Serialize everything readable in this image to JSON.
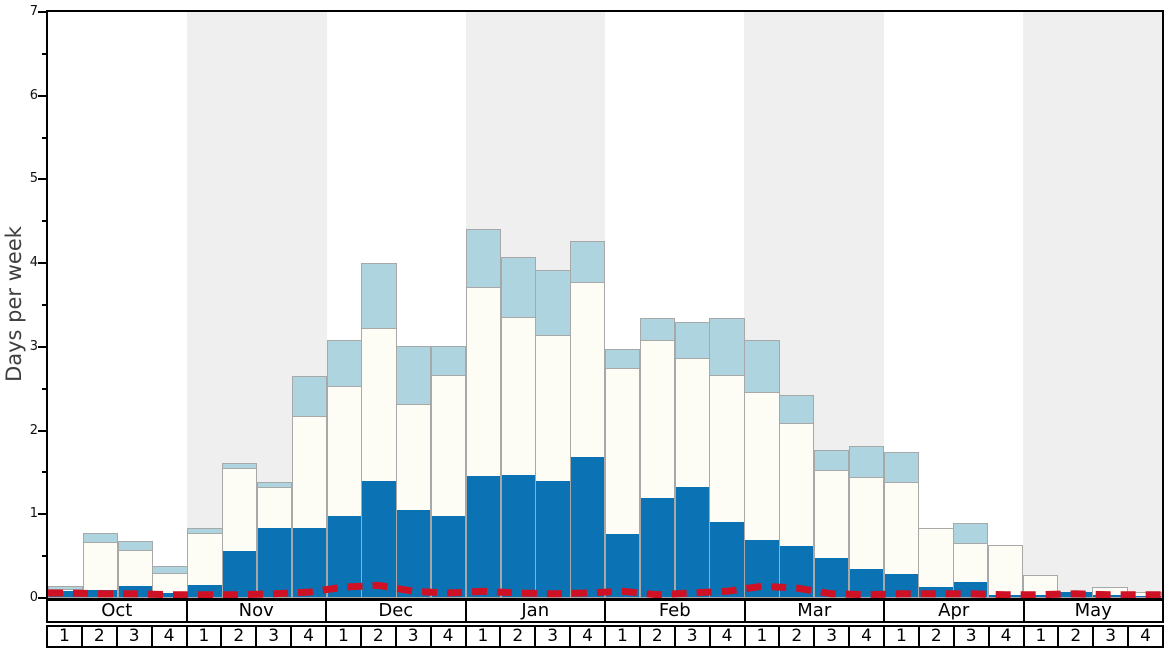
{
  "chart_data": {
    "type": "bar",
    "stacked": true,
    "title": "",
    "xlabel": "",
    "ylabel": "Days per week",
    "ylim": [
      0,
      7
    ],
    "yticks": [
      "0",
      "1",
      "2",
      "3",
      "4",
      "5",
      "6",
      "7"
    ],
    "minor_tick_step": 0.5,
    "grid": false,
    "legend": null,
    "months": [
      {
        "label": "Oct",
        "shaded": false
      },
      {
        "label": "Nov",
        "shaded": true
      },
      {
        "label": "Dec",
        "shaded": false
      },
      {
        "label": "Jan",
        "shaded": true
      },
      {
        "label": "Feb",
        "shaded": false
      },
      {
        "label": "Mar",
        "shaded": true
      },
      {
        "label": "Apr",
        "shaded": false
      },
      {
        "label": "May",
        "shaded": true
      }
    ],
    "week_labels": [
      "1",
      "2",
      "3",
      "4"
    ],
    "series": [
      {
        "name": "dark-blue-bottom",
        "color": "#0b73b3",
        "stack_top_values": [
          0.07,
          0.08,
          0.13,
          0.05,
          0.14,
          0.55,
          0.83,
          0.83,
          0.97,
          1.39,
          1.04,
          0.97,
          1.45,
          1.46,
          1.39,
          1.67,
          0.75,
          1.18,
          1.32,
          0.9,
          0.68,
          0.61,
          0.47,
          0.33,
          0.28,
          0.12,
          0.18,
          0.03,
          0.02,
          0.06,
          0.03,
          0.01
        ]
      },
      {
        "name": "white-middle",
        "color": "#fdfdf6",
        "stack_top_values": [
          0.11,
          0.67,
          0.58,
          0.3,
          0.78,
          1.55,
          1.33,
          2.17,
          2.53,
          3.22,
          2.32,
          2.67,
          3.72,
          3.36,
          3.14,
          3.78,
          2.75,
          3.08,
          2.87,
          2.67,
          2.46,
          2.09,
          1.53,
          1.45,
          1.39,
          0.84,
          0.66,
          0.63,
          0.28,
          0.07,
          0.13,
          0.07
        ]
      },
      {
        "name": "light-blue-top",
        "color": "#aed4e0",
        "stack_top_values": [
          0.14,
          0.78,
          0.68,
          0.38,
          0.84,
          1.61,
          1.39,
          2.65,
          3.08,
          4.0,
          3.01,
          3.01,
          4.41,
          4.07,
          3.92,
          4.27,
          2.97,
          3.35,
          3.3,
          3.35,
          3.08,
          2.43,
          1.77,
          1.82,
          1.74,
          0.84,
          0.9,
          0.63,
          0.28,
          0.07,
          0.13,
          0.07
        ]
      }
    ],
    "red_dashed_line": {
      "name": "red-dashed-line",
      "color": "#cf1125",
      "values": [
        0.06,
        0.05,
        0.05,
        0.04,
        0.04,
        0.04,
        0.05,
        0.07,
        0.13,
        0.15,
        0.08,
        0.06,
        0.08,
        0.06,
        0.05,
        0.06,
        0.08,
        0.04,
        0.06,
        0.08,
        0.14,
        0.12,
        0.05,
        0.04,
        0.05,
        0.05,
        0.05,
        0.04,
        0.04,
        0.05,
        0.04,
        0.04
      ]
    },
    "colors": {
      "band": "#efefef",
      "bar_border": "#a8a8a8",
      "frame": "#000000",
      "axis_label": "#3f3f3f"
    }
  }
}
